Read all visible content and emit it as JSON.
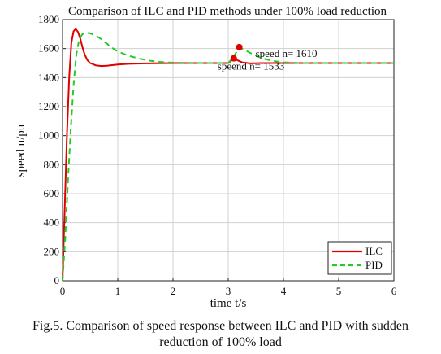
{
  "chart_data": {
    "type": "line",
    "title": "Comparison of ILC and PID methods under 100% load reduction",
    "xlabel": "time t/s",
    "ylabel": "speed n/pu",
    "xlim": [
      0,
      6
    ],
    "ylim": [
      0,
      1800
    ],
    "xticks": [
      0,
      1,
      2,
      3,
      4,
      5,
      6
    ],
    "yticks": [
      0,
      200,
      400,
      600,
      800,
      1000,
      1200,
      1400,
      1600,
      1800
    ],
    "grid": true,
    "legend_position": "bottom-right",
    "series": [
      {
        "name": "ILC",
        "color": "#e00000",
        "style": "solid",
        "points": [
          [
            0,
            0
          ],
          [
            0.04,
            500
          ],
          [
            0.08,
            1000
          ],
          [
            0.12,
            1400
          ],
          [
            0.16,
            1640
          ],
          [
            0.2,
            1720
          ],
          [
            0.24,
            1735
          ],
          [
            0.28,
            1715
          ],
          [
            0.32,
            1670
          ],
          [
            0.36,
            1610
          ],
          [
            0.4,
            1560
          ],
          [
            0.45,
            1520
          ],
          [
            0.5,
            1500
          ],
          [
            0.6,
            1485
          ],
          [
            0.7,
            1480
          ],
          [
            0.8,
            1482
          ],
          [
            1.0,
            1490
          ],
          [
            1.2,
            1495
          ],
          [
            1.5,
            1498
          ],
          [
            2.0,
            1500
          ],
          [
            2.5,
            1500
          ],
          [
            3.0,
            1500
          ],
          [
            3.05,
            1515
          ],
          [
            3.1,
            1533
          ],
          [
            3.15,
            1522
          ],
          [
            3.25,
            1505
          ],
          [
            3.4,
            1498
          ],
          [
            3.6,
            1500
          ],
          [
            4.0,
            1500
          ],
          [
            5.0,
            1500
          ],
          [
            6.0,
            1500
          ]
        ]
      },
      {
        "name": "PID",
        "color": "#22cc22",
        "style": "dashed",
        "points": [
          [
            0,
            0
          ],
          [
            0.05,
            300
          ],
          [
            0.1,
            700
          ],
          [
            0.15,
            1050
          ],
          [
            0.2,
            1350
          ],
          [
            0.25,
            1560
          ],
          [
            0.3,
            1660
          ],
          [
            0.35,
            1695
          ],
          [
            0.4,
            1710
          ],
          [
            0.5,
            1705
          ],
          [
            0.6,
            1690
          ],
          [
            0.7,
            1665
          ],
          [
            0.8,
            1635
          ],
          [
            0.9,
            1605
          ],
          [
            1.0,
            1580
          ],
          [
            1.2,
            1550
          ],
          [
            1.4,
            1530
          ],
          [
            1.6,
            1515
          ],
          [
            1.8,
            1507
          ],
          [
            2.0,
            1503
          ],
          [
            2.5,
            1500
          ],
          [
            3.0,
            1500
          ],
          [
            3.1,
            1545
          ],
          [
            3.2,
            1610
          ],
          [
            3.3,
            1590
          ],
          [
            3.45,
            1560
          ],
          [
            3.6,
            1535
          ],
          [
            3.8,
            1515
          ],
          [
            4.0,
            1505
          ],
          [
            4.3,
            1500
          ],
          [
            5.0,
            1500
          ],
          [
            6.0,
            1500
          ]
        ]
      }
    ],
    "annotations": [
      {
        "text": "speed n= 1610",
        "x": 3.2,
        "y": 1610,
        "marker_color": "#e00000"
      },
      {
        "text": "speend n= 1533",
        "x": 3.1,
        "y": 1533,
        "marker_color": "#e00000"
      }
    ]
  },
  "caption": {
    "line1": "Fig.5. Comparison of speed response between ILC and PID with sudden",
    "line2": "reduction of 100% load"
  }
}
